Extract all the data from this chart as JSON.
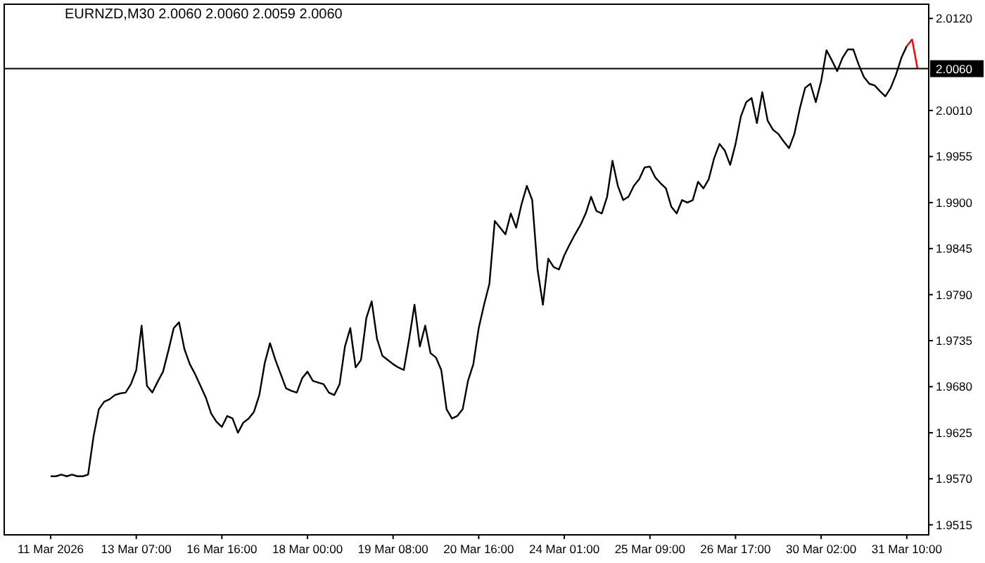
{
  "chart_data": {
    "type": "line",
    "title": "EURNZD,M30  2.0060 2.0060 2.0059 2.0060",
    "categories": [
      "11 Mar 2026",
      null,
      null,
      null,
      null,
      null,
      null,
      null,
      null,
      null,
      null,
      null,
      null,
      null,
      null,
      null,
      "13 Mar 07:00",
      null,
      null,
      null,
      null,
      null,
      null,
      null,
      null,
      null,
      null,
      null,
      null,
      null,
      null,
      null,
      "16 Mar 16:00",
      null,
      null,
      null,
      null,
      null,
      null,
      null,
      null,
      null,
      null,
      null,
      null,
      null,
      null,
      null,
      "18 Mar 00:00",
      null,
      null,
      null,
      null,
      null,
      null,
      null,
      null,
      null,
      null,
      null,
      null,
      null,
      null,
      null,
      "19 Mar 08:00",
      null,
      null,
      null,
      null,
      null,
      null,
      null,
      null,
      null,
      null,
      null,
      null,
      null,
      null,
      null,
      "20 Mar 16:00",
      null,
      null,
      null,
      null,
      null,
      null,
      null,
      null,
      null,
      null,
      null,
      null,
      null,
      null,
      null,
      "24 Mar 01:00",
      null,
      null,
      null,
      null,
      null,
      null,
      null,
      null,
      null,
      null,
      null,
      null,
      null,
      null,
      null,
      "25 Mar 09:00",
      null,
      null,
      null,
      null,
      null,
      null,
      null,
      null,
      null,
      null,
      null,
      null,
      null,
      null,
      null,
      "26 Mar 17:00",
      null,
      null,
      null,
      null,
      null,
      null,
      null,
      null,
      null,
      null,
      null,
      null,
      null,
      null,
      null,
      "30 Mar 02:00",
      null,
      null,
      null,
      null,
      null,
      null,
      null,
      null,
      null,
      null,
      null,
      null,
      null,
      null,
      null,
      "31 Mar 10:00",
      null,
      null
    ],
    "series": [
      {
        "color": "#000000",
        "values": [
          1.9573,
          1.9573,
          1.9575,
          1.9573,
          1.9575,
          1.9573,
          1.9573,
          1.9575,
          1.962,
          1.9653,
          1.9662,
          1.9665,
          1.967,
          1.9672,
          1.9673,
          1.9683,
          1.97,
          1.9753,
          1.9681,
          1.9673,
          1.9686,
          1.9698,
          1.9723,
          1.975,
          1.9757,
          1.9725,
          1.9707,
          1.9695,
          1.9681,
          1.9667,
          1.9648,
          1.9638,
          1.9632,
          1.9645,
          1.9642,
          1.9625,
          1.9637,
          1.9642,
          1.965,
          1.967,
          1.9708,
          1.9732,
          1.9712,
          1.9695,
          1.9678,
          1.9675,
          1.9673,
          1.969,
          1.9698,
          1.9687,
          1.9685,
          1.9683,
          1.9673,
          1.967,
          1.9683,
          1.9728,
          1.975,
          1.9703,
          1.9712,
          1.9762,
          1.9782,
          1.9737,
          1.9717,
          1.9712,
          1.9707,
          1.9703,
          1.97,
          1.9737,
          1.9778,
          1.9728,
          1.9753,
          1.972,
          1.9715,
          1.97,
          1.9653,
          1.9642,
          1.9645,
          1.9653,
          1.9687,
          1.9707,
          1.975,
          1.9778,
          1.9803,
          1.9878,
          1.987,
          1.9862,
          1.9887,
          1.987,
          1.9898,
          1.992,
          1.9903,
          1.982,
          1.9778,
          1.9833,
          1.9823,
          1.982,
          1.9837,
          1.985,
          1.9862,
          1.9873,
          1.9887,
          1.9907,
          1.989,
          1.9887,
          1.9907,
          1.995,
          1.992,
          1.9903,
          1.9907,
          1.992,
          1.9928,
          1.9942,
          1.9943,
          1.993,
          1.9923,
          1.9917,
          1.9895,
          1.9887,
          1.9903,
          1.99,
          1.9903,
          1.9925,
          1.9917,
          1.9928,
          1.9953,
          1.997,
          1.9962,
          1.9945,
          1.997,
          2.0003,
          2.002,
          2.0025,
          1.9995,
          2.0032,
          1.9998,
          1.9987,
          1.9982,
          1.9973,
          1.9965,
          1.9982,
          2.0012,
          2.0037,
          2.0042,
          2.002,
          2.0045,
          2.0082,
          2.007,
          2.0057,
          2.0073,
          2.0083,
          2.0083,
          2.0065,
          2.005,
          2.0042,
          2.004,
          2.0033,
          2.0027,
          2.0037,
          2.0053,
          2.0073,
          2.0087,
          null,
          null
        ]
      },
      {
        "color": "#ff0000",
        "values": [
          null,
          null,
          null,
          null,
          null,
          null,
          null,
          null,
          null,
          null,
          null,
          null,
          null,
          null,
          null,
          null,
          null,
          null,
          null,
          null,
          null,
          null,
          null,
          null,
          null,
          null,
          null,
          null,
          null,
          null,
          null,
          null,
          null,
          null,
          null,
          null,
          null,
          null,
          null,
          null,
          null,
          null,
          null,
          null,
          null,
          null,
          null,
          null,
          null,
          null,
          null,
          null,
          null,
          null,
          null,
          null,
          null,
          null,
          null,
          null,
          null,
          null,
          null,
          null,
          null,
          null,
          null,
          null,
          null,
          null,
          null,
          null,
          null,
          null,
          null,
          null,
          null,
          null,
          null,
          null,
          null,
          null,
          null,
          null,
          null,
          null,
          null,
          null,
          null,
          null,
          null,
          null,
          null,
          null,
          null,
          null,
          null,
          null,
          null,
          null,
          null,
          null,
          null,
          null,
          null,
          null,
          null,
          null,
          null,
          null,
          null,
          null,
          null,
          null,
          null,
          null,
          null,
          null,
          null,
          null,
          null,
          null,
          null,
          null,
          null,
          null,
          null,
          null,
          null,
          null,
          null,
          null,
          null,
          null,
          null,
          null,
          null,
          null,
          null,
          null,
          null,
          null,
          null,
          null,
          null,
          null,
          null,
          null,
          null,
          null,
          null,
          null,
          null,
          null,
          null,
          null,
          null,
          null,
          null,
          null,
          2.0087,
          2.0095,
          2.006
        ]
      }
    ],
    "ylim": [
      1.9503,
      2.0137
    ],
    "yticks": [
      {
        "value": 2.012,
        "label": "2.0120"
      },
      {
        "value": 2.001,
        "label": "2.0010"
      },
      1.9955,
      {
        "value": 1.99,
        "label": "1.9900"
      },
      1.9845,
      {
        "value": 1.979,
        "label": "1.9790"
      },
      1.9735,
      {
        "value": 1.968,
        "label": "1.9680"
      },
      1.9625,
      {
        "value": 1.957,
        "label": "1.9570"
      },
      1.9515
    ],
    "ref_lines": [
      {
        "axis": "y",
        "value": 2.006,
        "label": "2.0060",
        "color": "#000000"
      }
    ],
    "grid": false,
    "line_style": "solid",
    "marker": "none"
  }
}
